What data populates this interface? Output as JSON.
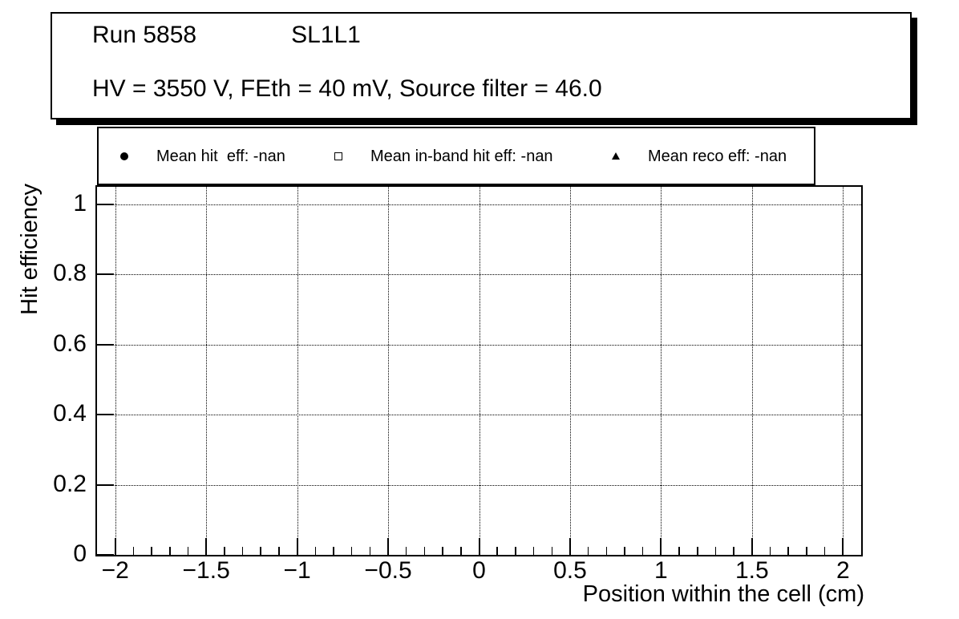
{
  "title_box": {
    "run": "Run 5858",
    "chamber": "SL1L1",
    "conditions": "HV = 3550 V, FEth = 40 mV, Source filter = 46.0"
  },
  "legend": {
    "entries": [
      {
        "marker": "filled-circle",
        "label": "Mean hit  eff: -nan"
      },
      {
        "marker": "open-square",
        "label": "Mean in-band hit eff: -nan"
      },
      {
        "marker": "filled-triangle",
        "label": "Mean reco eff: -nan"
      }
    ]
  },
  "chart_data": {
    "type": "scatter",
    "title": "Run 5858 SL1L1 — HV = 3550 V, FEth = 40 mV, Source filter = 46.0",
    "xlabel": "Position within the cell (cm)",
    "ylabel": "Hit efficiency",
    "xlim": [
      -2.1,
      2.1
    ],
    "ylim": [
      0,
      1.05
    ],
    "grid": "dotted-both-axes",
    "legend_position": "top",
    "x_ticks": {
      "values": [
        -2,
        -1.5,
        -1,
        -0.5,
        0,
        0.5,
        1,
        1.5,
        2
      ],
      "labels": [
        "−2",
        "−1.5",
        "−1",
        "−0.5",
        "0",
        "0.5",
        "1",
        "1.5",
        "2"
      ],
      "minor_step": 0.1
    },
    "y_ticks": {
      "values": [
        0,
        0.2,
        0.4,
        0.6,
        0.8,
        1
      ],
      "labels": [
        "0",
        "0.2",
        "0.4",
        "0.6",
        "0.8",
        "1"
      ]
    },
    "series": [
      {
        "name": "Mean hit  eff: -nan",
        "marker": "filled-circle",
        "points": []
      },
      {
        "name": "Mean in-band hit eff: -nan",
        "marker": "open-square",
        "points": []
      },
      {
        "name": "Mean reco eff: -nan",
        "marker": "filled-triangle",
        "points": []
      }
    ],
    "colors": {
      "foreground": "#000000",
      "background": "#ffffff"
    }
  }
}
